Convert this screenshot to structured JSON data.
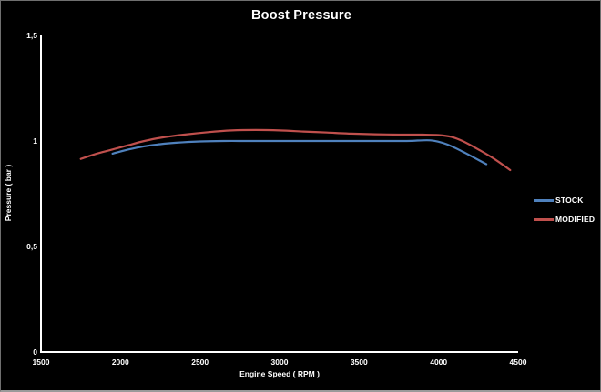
{
  "window": {
    "background": "#000000",
    "border_color": "#6f6f6f",
    "text_color": "#ffffff"
  },
  "chart_data": {
    "type": "line",
    "title": "Boost Pressure",
    "xlabel": "Engine Speed ( RPM )",
    "ylabel": "Pressure ( bar )",
    "xlim": [
      1500,
      4500
    ],
    "ylim": [
      0,
      1.5
    ],
    "x_ticks": [
      1500,
      2000,
      2500,
      3000,
      3500,
      4000,
      4500
    ],
    "y_ticks": [
      {
        "label": "0",
        "value": 0
      },
      {
        "label": "0,5",
        "value": 0.5
      },
      {
        "label": "1",
        "value": 1
      },
      {
        "label": "1,5",
        "value": 1.5
      }
    ],
    "grid": false,
    "legend_position": "right",
    "axis_color": "#ffffff",
    "series": [
      {
        "name": "STOCK",
        "color": "#4F81BD",
        "points": [
          [
            1950,
            0.94
          ],
          [
            2050,
            0.96
          ],
          [
            2150,
            0.975
          ],
          [
            2250,
            0.985
          ],
          [
            2350,
            0.992
          ],
          [
            2500,
            0.998
          ],
          [
            2650,
            1.0
          ],
          [
            2800,
            1.0
          ],
          [
            3000,
            1.0
          ],
          [
            3200,
            1.0
          ],
          [
            3400,
            1.0
          ],
          [
            3600,
            1.0
          ],
          [
            3800,
            1.0
          ],
          [
            3950,
            1.003
          ],
          [
            4050,
            0.985
          ],
          [
            4150,
            0.95
          ],
          [
            4300,
            0.89
          ]
        ]
      },
      {
        "name": "MODIFIED",
        "color": "#C0504D",
        "points": [
          [
            1750,
            0.915
          ],
          [
            1850,
            0.94
          ],
          [
            1950,
            0.96
          ],
          [
            2050,
            0.98
          ],
          [
            2150,
            1.0
          ],
          [
            2250,
            1.015
          ],
          [
            2400,
            1.03
          ],
          [
            2550,
            1.042
          ],
          [
            2700,
            1.05
          ],
          [
            2850,
            1.052
          ],
          [
            3000,
            1.05
          ],
          [
            3150,
            1.045
          ],
          [
            3300,
            1.04
          ],
          [
            3450,
            1.035
          ],
          [
            3600,
            1.032
          ],
          [
            3750,
            1.03
          ],
          [
            3900,
            1.03
          ],
          [
            4000,
            1.028
          ],
          [
            4080,
            1.02
          ],
          [
            4150,
            1.0
          ],
          [
            4250,
            0.96
          ],
          [
            4350,
            0.915
          ],
          [
            4450,
            0.862
          ]
        ]
      }
    ]
  }
}
